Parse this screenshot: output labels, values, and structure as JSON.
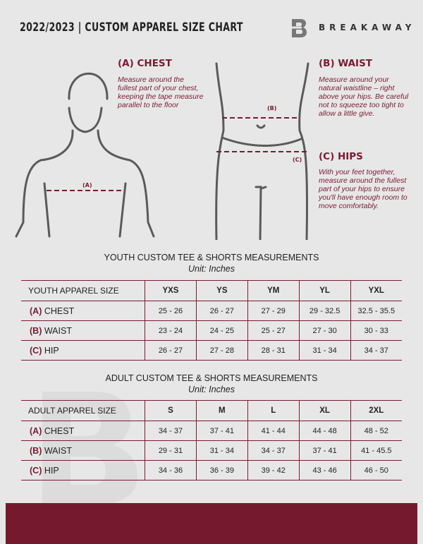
{
  "header": {
    "title": "2022/2023 | CUSTOM APPAREL SIZE CHART",
    "brand": "BREAKAWAY",
    "logo_letter": "B"
  },
  "colors": {
    "accent": "#7a1b30",
    "background": "#e7e7e8",
    "footer": "#751a2e"
  },
  "chest": {
    "heading": "(A) CHEST",
    "description": "Measure around the fullest part of your chest, keeping the tape measure parallel to the floor",
    "marker": "(A)"
  },
  "waist": {
    "heading": "(B) WAIST",
    "description": "Measure around your natural waistline – right above your hips. Be careful not to squeeze too tight to allow a little give.",
    "marker": "(B)"
  },
  "hips": {
    "heading": "(C) HIPS",
    "description": "With your feet together, measure around the fullest part of your hips to ensure you'll have enough room to move comfortably.",
    "marker": "(C)"
  },
  "youth": {
    "title": "YOUTH CUSTOM TEE & SHORTS MEASUREMENTS",
    "unit": "Unit: Inches",
    "header_label": "YOUTH APPAREL SIZE",
    "sizes": [
      "YXS",
      "YS",
      "YM",
      "YL",
      "YXL"
    ],
    "rows": [
      {
        "tag": "(A)",
        "name": "CHEST",
        "values": [
          "25 - 26",
          "26 - 27",
          "27 - 29",
          "29 - 32.5",
          "32.5 - 35.5"
        ]
      },
      {
        "tag": "(B)",
        "name": "WAIST",
        "values": [
          "23 - 24",
          "24 - 25",
          "25 - 27",
          "27 - 30",
          "30 - 33"
        ]
      },
      {
        "tag": "(C)",
        "name": "HIP",
        "values": [
          "26 - 27",
          "27 - 28",
          "28 - 31",
          "31 - 34",
          "34 - 37"
        ]
      }
    ]
  },
  "adult": {
    "title": "ADULT CUSTOM TEE & SHORTS MEASUREMENTS",
    "unit": "Unit: Inches",
    "header_label": "ADULT APPAREL SIZE",
    "sizes": [
      "S",
      "M",
      "L",
      "XL",
      "2XL"
    ],
    "rows": [
      {
        "tag": "(A)",
        "name": "CHEST",
        "values": [
          "34 - 37",
          "37 - 41",
          "41 - 44",
          "44 - 48",
          "48 - 52"
        ]
      },
      {
        "tag": "(B)",
        "name": "WAIST",
        "values": [
          "29 - 31",
          "31 - 34",
          "34 - 37",
          "37 - 41",
          "41 - 45.5"
        ]
      },
      {
        "tag": "(C)",
        "name": "HIP",
        "values": [
          "34 - 36",
          "36 - 39",
          "39 - 42",
          "43 - 46",
          "46 - 50"
        ]
      }
    ]
  }
}
